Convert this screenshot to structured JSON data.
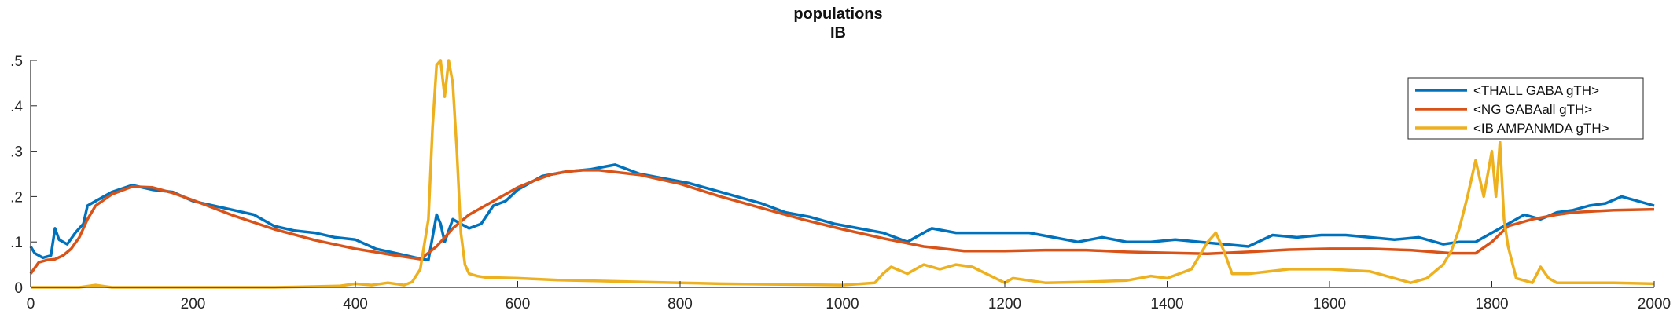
{
  "chart_data": {
    "type": "line",
    "title": "populations",
    "subtitle": "IB",
    "xlabel": "",
    "ylabel": "",
    "xlim": [
      0,
      2000
    ],
    "ylim": [
      0,
      0.5
    ],
    "xticks": [
      0,
      200,
      400,
      600,
      800,
      1000,
      1200,
      1400,
      1600,
      1800,
      2000
    ],
    "yticks": [
      0,
      0.1,
      0.2,
      0.3,
      0.4,
      0.5
    ],
    "ytick_labels": [
      "0",
      ".1",
      ".2",
      ".3",
      ".4",
      ".5"
    ],
    "grid": false,
    "legend_position": "top-right",
    "series": [
      {
        "name": "<THALL GABA gTH>",
        "color": "#0072BD",
        "x": [
          0,
          5,
          15,
          25,
          30,
          35,
          45,
          55,
          65,
          70,
          80,
          100,
          125,
          150,
          175,
          200,
          225,
          250,
          275,
          300,
          325,
          350,
          375,
          400,
          425,
          450,
          475,
          490,
          500,
          505,
          510,
          520,
          530,
          540,
          555,
          570,
          585,
          600,
          630,
          660,
          690,
          720,
          750,
          780,
          810,
          840,
          870,
          900,
          930,
          960,
          990,
          1020,
          1050,
          1080,
          1110,
          1140,
          1170,
          1200,
          1230,
          1260,
          1290,
          1320,
          1350,
          1380,
          1410,
          1440,
          1470,
          1500,
          1530,
          1560,
          1590,
          1620,
          1650,
          1680,
          1710,
          1740,
          1760,
          1780,
          1800,
          1820,
          1840,
          1860,
          1880,
          1900,
          1920,
          1940,
          1960,
          1980,
          2000
        ],
        "y": [
          0.09,
          0.075,
          0.065,
          0.07,
          0.13,
          0.105,
          0.095,
          0.12,
          0.14,
          0.18,
          0.19,
          0.21,
          0.225,
          0.215,
          0.21,
          0.19,
          0.18,
          0.17,
          0.16,
          0.135,
          0.125,
          0.12,
          0.11,
          0.105,
          0.085,
          0.075,
          0.065,
          0.06,
          0.16,
          0.14,
          0.1,
          0.15,
          0.14,
          0.13,
          0.14,
          0.18,
          0.19,
          0.215,
          0.245,
          0.255,
          0.26,
          0.27,
          0.25,
          0.24,
          0.23,
          0.215,
          0.2,
          0.185,
          0.165,
          0.155,
          0.14,
          0.13,
          0.12,
          0.1,
          0.13,
          0.12,
          0.12,
          0.12,
          0.12,
          0.11,
          0.1,
          0.11,
          0.1,
          0.1,
          0.105,
          0.1,
          0.095,
          0.09,
          0.115,
          0.11,
          0.115,
          0.115,
          0.11,
          0.105,
          0.11,
          0.095,
          0.1,
          0.1,
          0.12,
          0.14,
          0.16,
          0.15,
          0.165,
          0.17,
          0.18,
          0.185,
          0.2,
          0.19,
          0.18
        ]
      },
      {
        "name": "<NG GABAall gTH>",
        "color": "#D95319",
        "x": [
          0,
          10,
          20,
          30,
          40,
          50,
          60,
          70,
          80,
          100,
          125,
          150,
          175,
          200,
          250,
          300,
          350,
          400,
          450,
          480,
          500,
          520,
          540,
          560,
          580,
          600,
          620,
          640,
          660,
          680,
          700,
          750,
          800,
          850,
          900,
          950,
          1000,
          1050,
          1100,
          1150,
          1200,
          1250,
          1300,
          1350,
          1400,
          1450,
          1500,
          1550,
          1600,
          1650,
          1700,
          1750,
          1780,
          1800,
          1820,
          1850,
          1880,
          1900,
          1950,
          2000
        ],
        "y": [
          0.03,
          0.055,
          0.06,
          0.062,
          0.07,
          0.085,
          0.11,
          0.15,
          0.18,
          0.205,
          0.222,
          0.22,
          0.208,
          0.192,
          0.158,
          0.128,
          0.104,
          0.085,
          0.07,
          0.062,
          0.09,
          0.13,
          0.16,
          0.18,
          0.2,
          0.22,
          0.235,
          0.248,
          0.255,
          0.258,
          0.258,
          0.248,
          0.228,
          0.2,
          0.175,
          0.15,
          0.128,
          0.108,
          0.09,
          0.08,
          0.08,
          0.082,
          0.082,
          0.078,
          0.076,
          0.074,
          0.078,
          0.083,
          0.085,
          0.085,
          0.082,
          0.075,
          0.075,
          0.1,
          0.135,
          0.15,
          0.16,
          0.165,
          0.17,
          0.172
        ]
      },
      {
        "name": "<IB AMPANMDA gTH>",
        "color": "#EDB120",
        "x": [
          0,
          60,
          80,
          100,
          300,
          380,
          400,
          420,
          440,
          460,
          470,
          480,
          490,
          495,
          500,
          505,
          510,
          515,
          520,
          525,
          530,
          535,
          540,
          550,
          560,
          600,
          650,
          700,
          750,
          800,
          850,
          900,
          950,
          1000,
          1040,
          1050,
          1060,
          1080,
          1100,
          1120,
          1140,
          1160,
          1200,
          1210,
          1250,
          1300,
          1350,
          1380,
          1400,
          1430,
          1450,
          1460,
          1470,
          1480,
          1500,
          1550,
          1600,
          1650,
          1700,
          1720,
          1740,
          1750,
          1760,
          1770,
          1780,
          1790,
          1800,
          1805,
          1810,
          1815,
          1820,
          1830,
          1850,
          1860,
          1870,
          1880,
          1900,
          1950,
          2000
        ],
        "y": [
          0,
          0,
          0.005,
          0,
          0,
          0.003,
          0.008,
          0.005,
          0.01,
          0.005,
          0.012,
          0.04,
          0.15,
          0.35,
          0.49,
          0.5,
          0.42,
          0.5,
          0.45,
          0.3,
          0.12,
          0.05,
          0.03,
          0.025,
          0.022,
          0.02,
          0.016,
          0.014,
          0.012,
          0.01,
          0.008,
          0.007,
          0.006,
          0.005,
          0.01,
          0.03,
          0.045,
          0.03,
          0.05,
          0.04,
          0.05,
          0.045,
          0.01,
          0.02,
          0.01,
          0.012,
          0.015,
          0.025,
          0.02,
          0.04,
          0.1,
          0.12,
          0.08,
          0.03,
          0.03,
          0.04,
          0.04,
          0.035,
          0.01,
          0.02,
          0.05,
          0.08,
          0.13,
          0.2,
          0.28,
          0.2,
          0.3,
          0.2,
          0.32,
          0.15,
          0.09,
          0.02,
          0.01,
          0.045,
          0.02,
          0.01,
          0.01,
          0.01,
          0.008
        ]
      }
    ]
  }
}
